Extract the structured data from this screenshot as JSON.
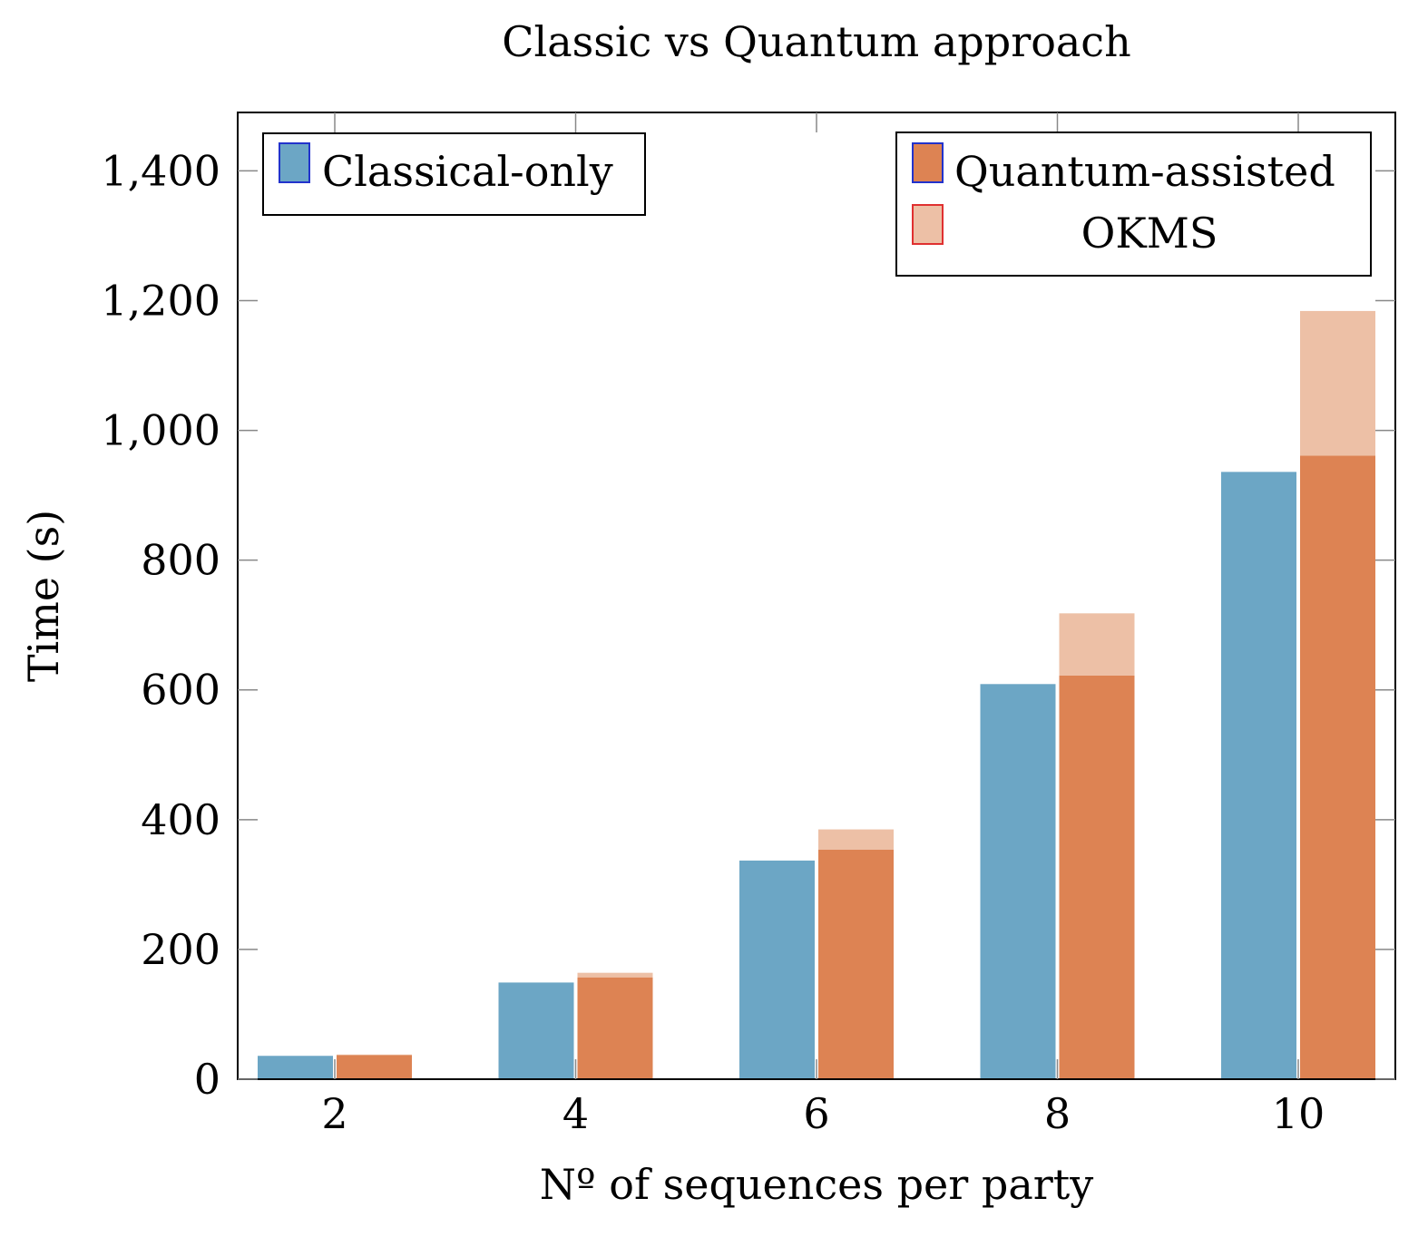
{
  "chart_data": {
    "type": "bar",
    "title": "Classic vs Quantum approach",
    "xlabel": "Nº of sequences per party",
    "ylabel": "Time (s)",
    "categories": [
      "2",
      "4",
      "6",
      "8",
      "10"
    ],
    "ylim": [
      0,
      1490
    ],
    "yticks": [
      0,
      200,
      400,
      600,
      800,
      1000,
      1200,
      1400
    ],
    "ytick_labels": [
      "0",
      "200",
      "400",
      "600",
      "800",
      "1,000",
      "1,200",
      "1,400"
    ],
    "grid": false,
    "series": [
      {
        "name": "Classical-only",
        "values": [
          36,
          149,
          337,
          609,
          936
        ],
        "color": "#6ca6c5",
        "stack": "a"
      },
      {
        "name": "Quantum-assisted",
        "values": [
          37,
          157,
          354,
          622,
          961
        ],
        "color": "#dd8353",
        "stack": "b"
      },
      {
        "name": "OKMS",
        "values": [
          1,
          7,
          31,
          96,
          223
        ],
        "color": "#edc0a6",
        "stack": "b"
      }
    ],
    "legends": [
      {
        "position": "top-left",
        "entries": [
          "Classical-only"
        ]
      },
      {
        "position": "top-right",
        "entries": [
          "Quantum-assisted",
          "OKMS"
        ]
      }
    ]
  }
}
